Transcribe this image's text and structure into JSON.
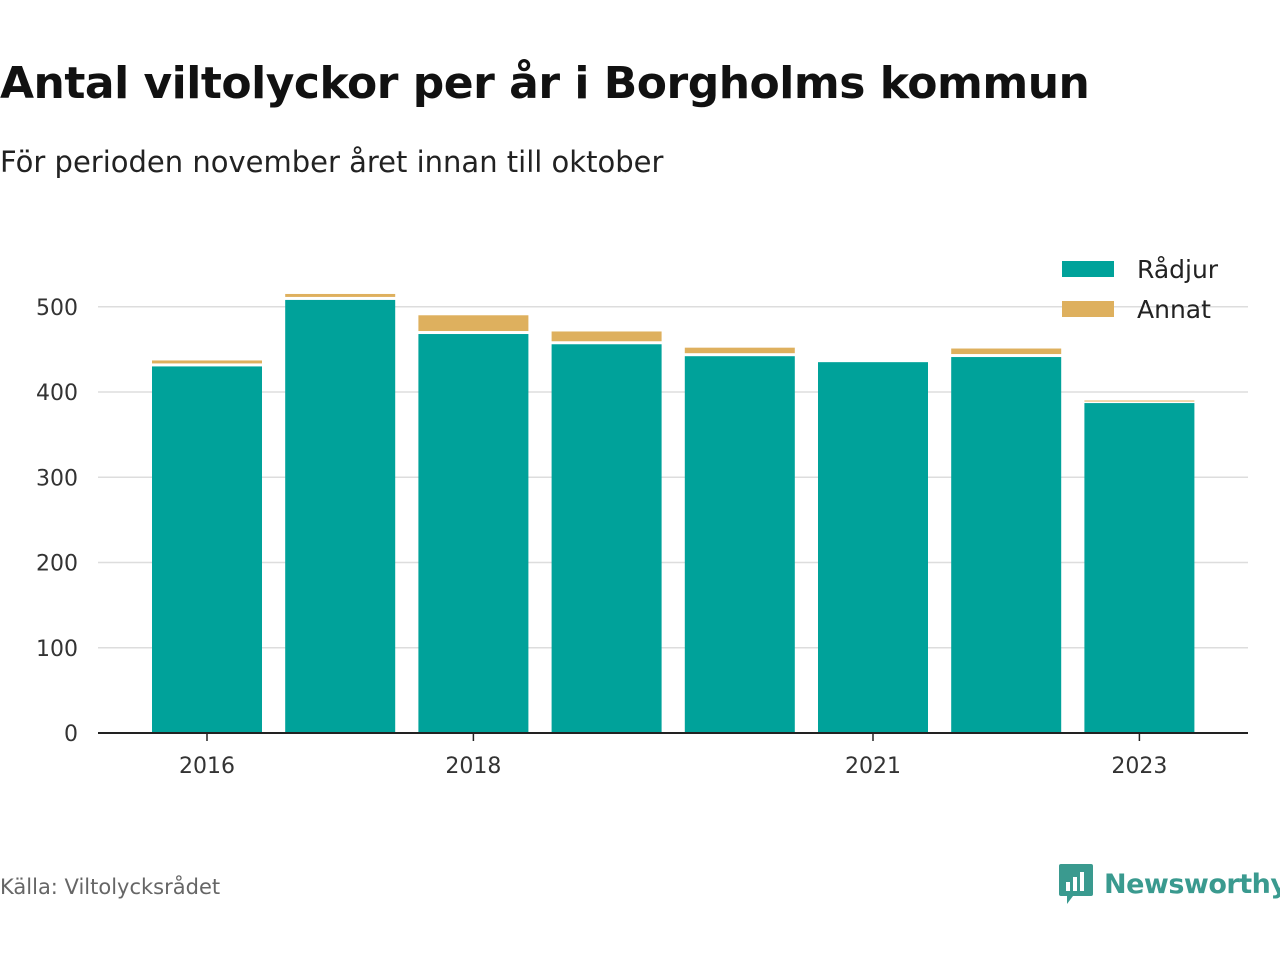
{
  "header": {
    "title": "Antal viltolyckor per år i Borgholms kommun",
    "subtitle": "För perioden november året innan till oktober"
  },
  "footer": {
    "source": "Källa: Viltolycksrådet",
    "brand": "Newsworthy",
    "brand_icon": "chart-bubble-icon"
  },
  "colors": {
    "radjur": "#00a29a",
    "annat": "#deb05e",
    "grid": "#dddddd",
    "axis": "#222222",
    "brand": "#3a9a8f"
  },
  "chart_data": {
    "type": "bar",
    "stacked": true,
    "categories": [
      "2016",
      "2017",
      "2018",
      "2019",
      "2020",
      "2021",
      "2022",
      "2023"
    ],
    "x_tick_labels": [
      "2016",
      "",
      "2018",
      "",
      "",
      "2021",
      "",
      "2023"
    ],
    "series": [
      {
        "name": "Rådjur",
        "color": "#00a29a",
        "values": [
          430,
          508,
          468,
          456,
          442,
          435,
          441,
          387
        ]
      },
      {
        "name": "Annat",
        "color": "#deb05e",
        "values": [
          7,
          7,
          22,
          15,
          10,
          0,
          10,
          3
        ]
      }
    ],
    "ylim": [
      0,
      550
    ],
    "yticks": [
      0,
      100,
      200,
      300,
      400,
      500
    ],
    "grid": true,
    "legend_position": "top-right"
  }
}
